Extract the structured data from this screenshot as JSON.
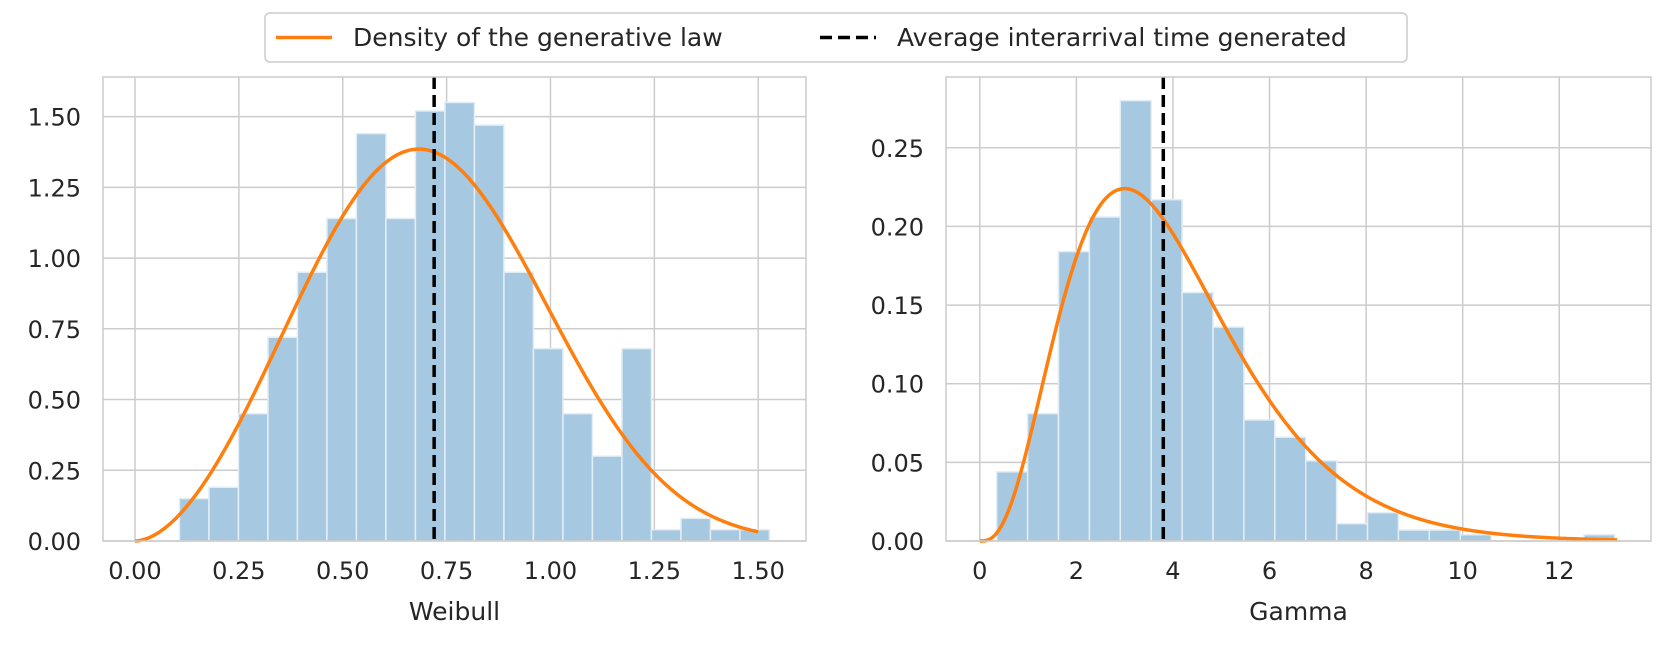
{
  "legend": {
    "items": [
      {
        "label": "Density of the generative law",
        "style": "solid",
        "color": "#ff7f0e"
      },
      {
        "label": "Average interarrival time generated",
        "style": "dashed",
        "color": "#000000"
      }
    ]
  },
  "colors": {
    "hist": "#a6c8e0",
    "hist_edge": "#e3edf5",
    "density": "#ff7f0e",
    "mean_line": "#000000",
    "grid": "#cccccc",
    "spine": "#cccccc"
  },
  "chart_data": [
    {
      "type": "bar",
      "subtype": "histogram",
      "xlabel": "Weibull",
      "ylabel": "",
      "title": "",
      "grid": true,
      "xlim": [
        -0.077,
        1.615
      ],
      "ylim": [
        0,
        1.64
      ],
      "xticks": [
        0.0,
        0.25,
        0.5,
        0.75,
        1.0,
        1.25,
        1.5
      ],
      "xtick_labels": [
        "0.00",
        "0.25",
        "0.50",
        "0.75",
        "1.00",
        "1.25",
        "1.50"
      ],
      "yticks": [
        0.0,
        0.25,
        0.5,
        0.75,
        1.0,
        1.25,
        1.5
      ],
      "ytick_labels": [
        "0.00",
        "0.25",
        "0.50",
        "0.75",
        "1.00",
        "1.25",
        "1.50"
      ],
      "bin_edges": [
        0.107,
        0.178,
        0.249,
        0.32,
        0.391,
        0.462,
        0.533,
        0.604,
        0.675,
        0.746,
        0.817,
        0.888,
        0.959,
        1.03,
        1.101,
        1.172,
        1.243,
        1.314,
        1.385,
        1.456,
        1.527
      ],
      "values": [
        0.15,
        0.19,
        0.45,
        0.72,
        0.95,
        1.14,
        1.44,
        1.14,
        1.52,
        1.55,
        1.47,
        0.95,
        0.68,
        0.45,
        0.3,
        0.68,
        0.04,
        0.08,
        0.04,
        0.04
      ],
      "density_curve": {
        "distribution": "weibull",
        "shape": 2.8,
        "scale": 0.8,
        "x_range": [
          0.0,
          1.5
        ]
      },
      "mean_line_x": 0.72
    },
    {
      "type": "bar",
      "subtype": "histogram",
      "xlabel": "Gamma",
      "ylabel": "",
      "title": "",
      "grid": true,
      "xlim": [
        -0.7,
        13.9
      ],
      "ylim": [
        0,
        0.295
      ],
      "xticks": [
        0,
        2,
        4,
        6,
        8,
        10,
        12
      ],
      "xtick_labels": [
        "0",
        "2",
        "4",
        "6",
        "8",
        "10",
        "12"
      ],
      "yticks": [
        0.0,
        0.05,
        0.1,
        0.15,
        0.2,
        0.25
      ],
      "ytick_labels": [
        "0.00",
        "0.05",
        "0.10",
        "0.15",
        "0.20",
        "0.25"
      ],
      "bin_edges": [
        0.35,
        0.99,
        1.63,
        2.27,
        2.91,
        3.55,
        4.19,
        4.83,
        5.47,
        6.11,
        6.75,
        7.39,
        8.03,
        8.67,
        9.31,
        9.95,
        10.59,
        11.23,
        11.87,
        12.51,
        13.15
      ],
      "values": [
        0.044,
        0.081,
        0.184,
        0.206,
        0.28,
        0.217,
        0.158,
        0.136,
        0.077,
        0.066,
        0.051,
        0.011,
        0.018,
        0.007,
        0.007,
        0.004,
        0.0,
        0.0,
        0.0,
        0.004
      ],
      "density_curve": {
        "distribution": "gamma",
        "shape": 4.0,
        "scale": 1.0,
        "x_range": [
          0.0,
          13.2
        ]
      },
      "mean_line_x": 3.8
    }
  ]
}
